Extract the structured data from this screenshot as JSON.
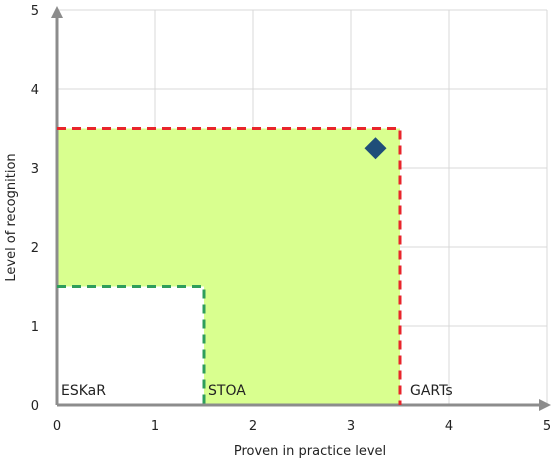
{
  "chart_data": {
    "type": "scatter",
    "xlabel": "Proven  in practice level",
    "ylabel": "Level of recognition",
    "xlim": [
      0,
      5
    ],
    "ylim": [
      0,
      5
    ],
    "x_ticks": [
      "0",
      "1",
      "2",
      "3",
      "4",
      "5"
    ],
    "y_ticks": [
      "0",
      "1",
      "2",
      "3",
      "4",
      "5"
    ],
    "grid": true,
    "regions": [
      {
        "label": "ESKaR",
        "x_max": 1.5,
        "y_max": 1.5,
        "border_color": "#2e9e5b",
        "border_style": "dashed"
      },
      {
        "label": "STOA",
        "x_max": 3.5,
        "y_max": 3.5,
        "border_color": "#e8252b",
        "border_style": "dashed",
        "fill_color": "#d9ff8f"
      },
      {
        "label": "GARTs"
      }
    ],
    "points": [
      {
        "x": 3.25,
        "y": 3.25,
        "marker": "diamond",
        "color": "#1f4e79"
      }
    ]
  }
}
